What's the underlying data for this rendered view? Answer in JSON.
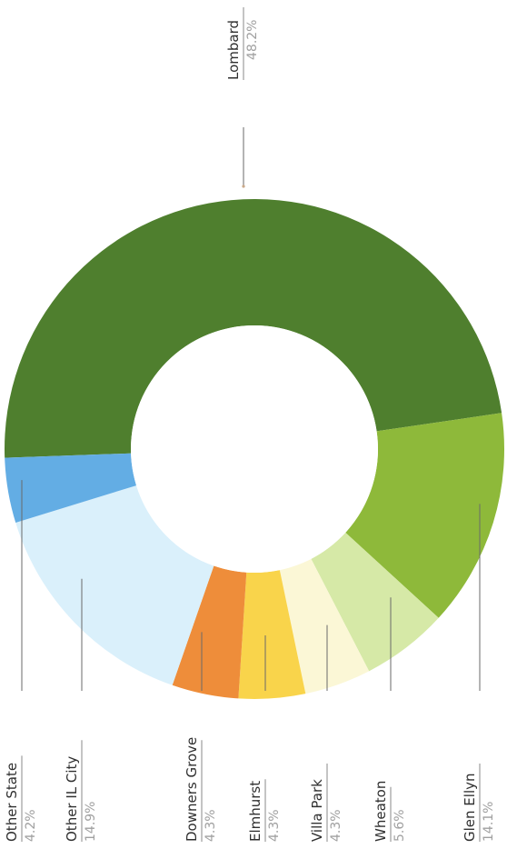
{
  "chart_data": {
    "type": "pie",
    "variant": "donut",
    "title": "",
    "slices": [
      {
        "label": "Lombard",
        "value": 48.2,
        "display": "48.2%",
        "color": "#4f7f2e"
      },
      {
        "label": "Glen Ellyn",
        "value": 14.1,
        "display": "14.1%",
        "color": "#8eb93a"
      },
      {
        "label": "Wheaton",
        "value": 5.6,
        "display": "5.6%",
        "color": "#d6e9a7"
      },
      {
        "label": "Villa Park",
        "value": 4.3,
        "display": "4.3%",
        "color": "#fbf7d6"
      },
      {
        "label": "Elmhurst",
        "value": 4.3,
        "display": "4.3%",
        "color": "#f9d44b"
      },
      {
        "label": "Downers Grove",
        "value": 4.3,
        "display": "4.3%",
        "color": "#ee8d3a"
      },
      {
        "label": "Other IL City",
        "value": 14.9,
        "display": "14.9%",
        "color": "#daf0fb"
      },
      {
        "label": "Other State",
        "value": 4.2,
        "display": "4.2%",
        "color": "#63ade4"
      }
    ],
    "legend": "none",
    "labels": "outside, rotated"
  }
}
